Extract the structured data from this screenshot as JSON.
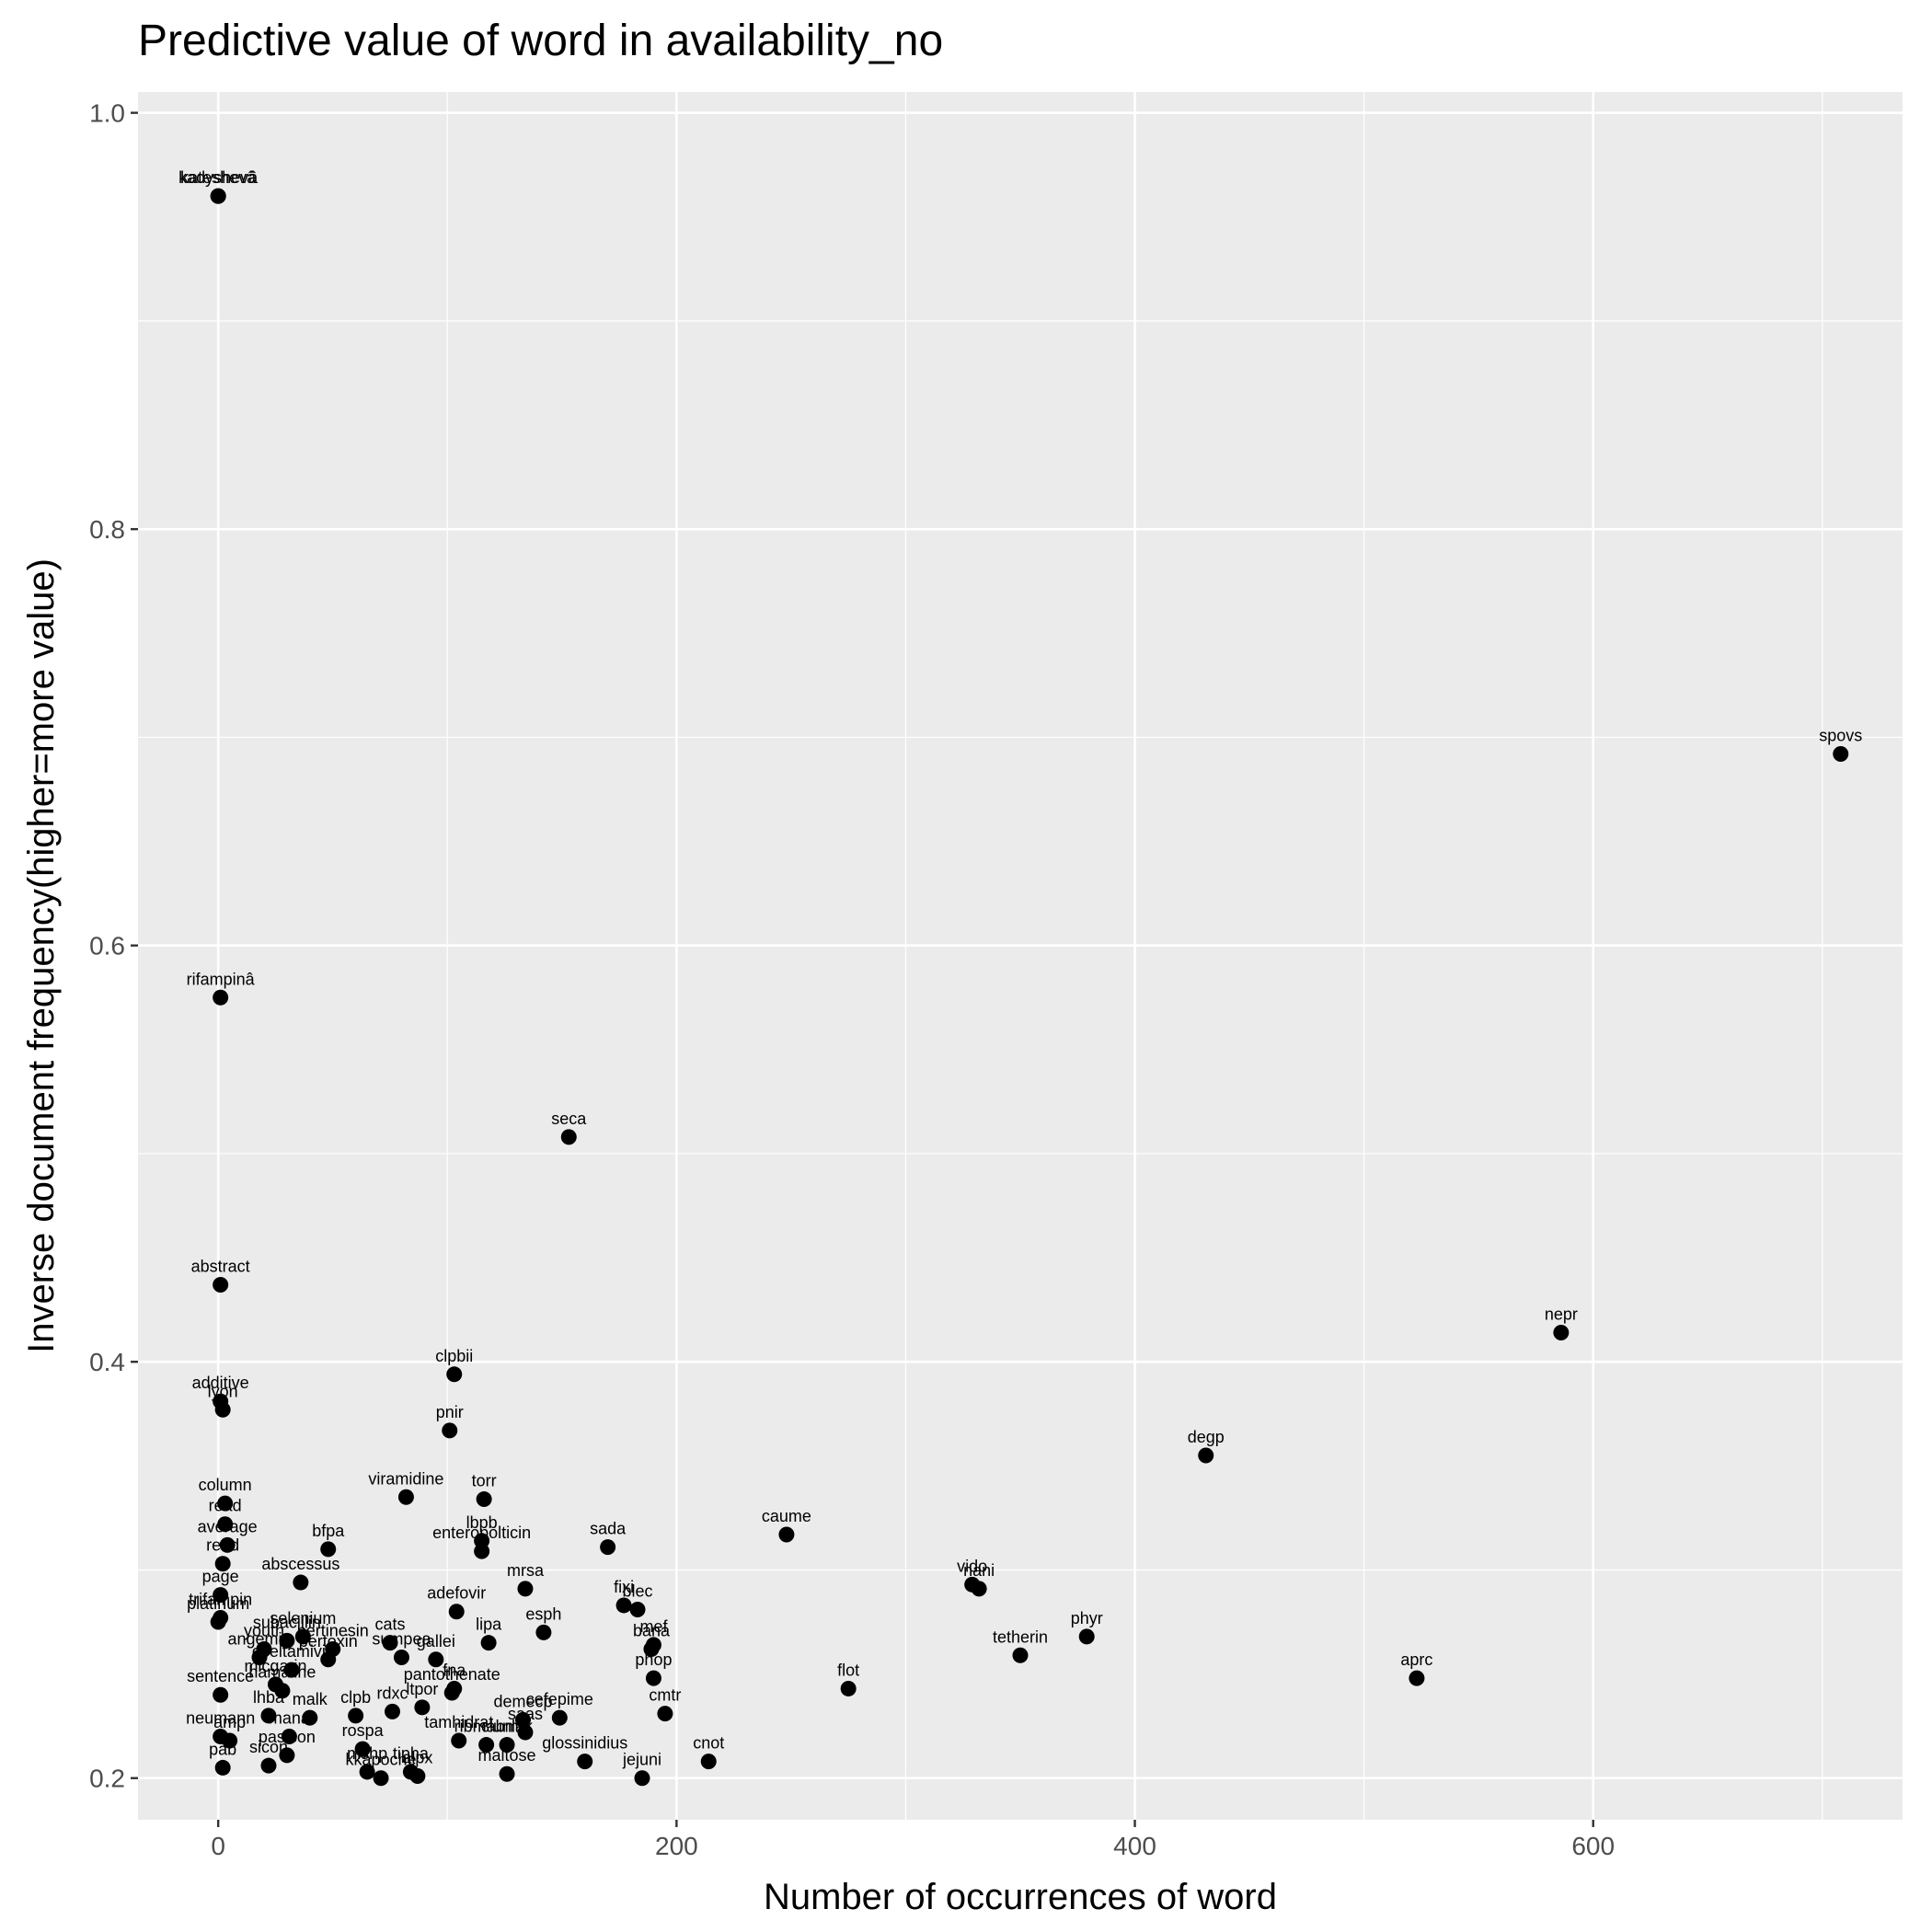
{
  "chart_data": {
    "type": "scatter",
    "title": "Predictive value of word in availability_no",
    "xlabel": "Number of occurrences of word",
    "ylabel": "Inverse document frequency(higher=more value)",
    "xlim": [
      -35,
      735
    ],
    "ylim": [
      0.18,
      1.01
    ],
    "x_ticks": [
      0,
      200,
      400,
      600
    ],
    "y_ticks": [
      0.2,
      0.4,
      0.6,
      0.8,
      1.0
    ],
    "y_tick_labels": [
      "0.2",
      "0.4",
      "0.6",
      "0.8",
      "1.0"
    ],
    "grid": true,
    "background": "#ebebeb",
    "grid_color": "#ffffff",
    "point_color": "#000000",
    "points": [
      {
        "label": "kadyshevâ",
        "x": 0,
        "y": 0.96
      },
      {
        "label": "kateshevâ",
        "x": 0,
        "y": 0.96
      },
      {
        "label": "spovs",
        "x": 708,
        "y": 0.692
      },
      {
        "label": "rifampinâ",
        "x": 1,
        "y": 0.575
      },
      {
        "label": "seca",
        "x": 153,
        "y": 0.508
      },
      {
        "label": "abstract",
        "x": 1,
        "y": 0.437
      },
      {
        "label": "nepr",
        "x": 586,
        "y": 0.414
      },
      {
        "label": "clpbii",
        "x": 103,
        "y": 0.394
      },
      {
        "label": "additive",
        "x": 1,
        "y": 0.381
      },
      {
        "label": "lyon",
        "x": 2,
        "y": 0.377
      },
      {
        "label": "pnir",
        "x": 101,
        "y": 0.367
      },
      {
        "label": "degp",
        "x": 431,
        "y": 0.355
      },
      {
        "label": "viramidine",
        "x": 82,
        "y": 0.335
      },
      {
        "label": "torr",
        "x": 116,
        "y": 0.334
      },
      {
        "label": "column",
        "x": 3,
        "y": 0.332
      },
      {
        "label": "read",
        "x": 3,
        "y": 0.322
      },
      {
        "label": "caume",
        "x": 248,
        "y": 0.317
      },
      {
        "label": "average",
        "x": 4,
        "y": 0.312
      },
      {
        "label": "sada",
        "x": 170,
        "y": 0.311
      },
      {
        "label": "bfpa",
        "x": 48,
        "y": 0.31
      },
      {
        "label": "lbpb",
        "x": 115,
        "y": 0.314
      },
      {
        "label": "enteropolticin",
        "x": 115,
        "y": 0.309
      },
      {
        "label": "reed",
        "x": 2,
        "y": 0.303
      },
      {
        "label": "page",
        "x": 1,
        "y": 0.288
      },
      {
        "label": "abscessus",
        "x": 36,
        "y": 0.294
      },
      {
        "label": "vido",
        "x": 329,
        "y": 0.293
      },
      {
        "label": "nani",
        "x": 332,
        "y": 0.291
      },
      {
        "label": "mrsa",
        "x": 134,
        "y": 0.291
      },
      {
        "label": "fixi",
        "x": 177,
        "y": 0.283
      },
      {
        "label": "blec",
        "x": 183,
        "y": 0.281
      },
      {
        "label": "adefovir",
        "x": 104,
        "y": 0.28
      },
      {
        "label": "trifampin",
        "x": 1,
        "y": 0.277
      },
      {
        "label": "platinum",
        "x": 0,
        "y": 0.275
      },
      {
        "label": "esph",
        "x": 142,
        "y": 0.27
      },
      {
        "label": "lipa",
        "x": 118,
        "y": 0.265
      },
      {
        "label": "phyr",
        "x": 379,
        "y": 0.268
      },
      {
        "label": "selenium",
        "x": 37,
        "y": 0.268
      },
      {
        "label": "subacillin",
        "x": 30,
        "y": 0.266
      },
      {
        "label": "cats",
        "x": 75,
        "y": 0.265
      },
      {
        "label": "tetherin",
        "x": 350,
        "y": 0.259
      },
      {
        "label": "bana",
        "x": 189,
        "y": 0.262
      },
      {
        "label": "mef",
        "x": 190,
        "y": 0.264
      },
      {
        "label": "youth",
        "x": 20,
        "y": 0.262
      },
      {
        "label": "pertinesin",
        "x": 50,
        "y": 0.262
      },
      {
        "label": "angemin",
        "x": 18,
        "y": 0.258
      },
      {
        "label": "pertoxin",
        "x": 48,
        "y": 0.257
      },
      {
        "label": "sumpea",
        "x": 80,
        "y": 0.258
      },
      {
        "label": "gallei",
        "x": 95,
        "y": 0.257
      },
      {
        "label": "oseltamivir",
        "x": 32,
        "y": 0.252
      },
      {
        "label": "phop",
        "x": 190,
        "y": 0.248
      },
      {
        "label": "aprc",
        "x": 523,
        "y": 0.248
      },
      {
        "label": "sentence",
        "x": 1,
        "y": 0.24
      },
      {
        "label": "pantothenate",
        "x": 102,
        "y": 0.241
      },
      {
        "label": "flot",
        "x": 275,
        "y": 0.243
      },
      {
        "label": "fna",
        "x": 103,
        "y": 0.243
      },
      {
        "label": "micgarin",
        "x": 25,
        "y": 0.245
      },
      {
        "label": "hamaline",
        "x": 28,
        "y": 0.242
      },
      {
        "label": "cmtr",
        "x": 195,
        "y": 0.231
      },
      {
        "label": "malk",
        "x": 40,
        "y": 0.229
      },
      {
        "label": "clpb",
        "x": 60,
        "y": 0.23
      },
      {
        "label": "rdxc",
        "x": 76,
        "y": 0.232
      },
      {
        "label": "ltpor",
        "x": 89,
        "y": 0.234
      },
      {
        "label": "cefepime",
        "x": 149,
        "y": 0.229
      },
      {
        "label": "demecp",
        "x": 133,
        "y": 0.228
      },
      {
        "label": "neumann",
        "x": 1,
        "y": 0.22
      },
      {
        "label": "lhba",
        "x": 22,
        "y": 0.23
      },
      {
        "label": "amp",
        "x": 5,
        "y": 0.218
      },
      {
        "label": "mana",
        "x": 31,
        "y": 0.22
      },
      {
        "label": "saas",
        "x": 134,
        "y": 0.222
      },
      {
        "label": "tamhidrat",
        "x": 105,
        "y": 0.218
      },
      {
        "label": "ribmabm",
        "x": 117,
        "y": 0.216
      },
      {
        "label": "clunlak",
        "x": 126,
        "y": 0.216
      },
      {
        "label": "glossinidius",
        "x": 160,
        "y": 0.208
      },
      {
        "label": "rospa",
        "x": 63,
        "y": 0.214
      },
      {
        "label": "cnot",
        "x": 214,
        "y": 0.208
      },
      {
        "label": "jejuni",
        "x": 185,
        "y": 0.2
      },
      {
        "label": "maltose",
        "x": 126,
        "y": 0.202
      },
      {
        "label": "pab",
        "x": 2,
        "y": 0.205
      },
      {
        "label": "pasicon",
        "x": 30,
        "y": 0.211
      },
      {
        "label": "sicon",
        "x": 22,
        "y": 0.206
      },
      {
        "label": "mshp",
        "x": 65,
        "y": 0.203
      },
      {
        "label": "kkapoche",
        "x": 71,
        "y": 0.2
      },
      {
        "label": "tipha",
        "x": 84,
        "y": 0.203
      },
      {
        "label": "alpx",
        "x": 87,
        "y": 0.201
      }
    ]
  }
}
